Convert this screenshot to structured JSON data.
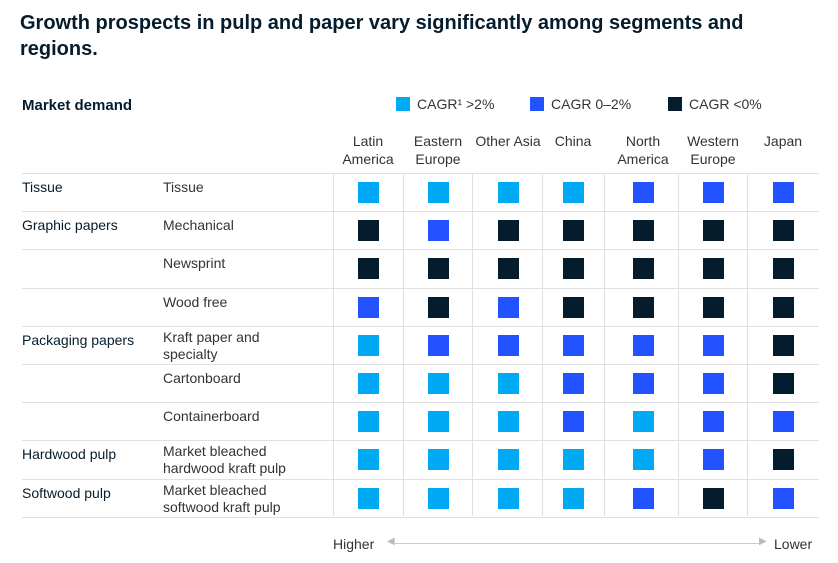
{
  "title": "Growth prospects in pulp and paper vary significantly among segments and regions.",
  "chart_data": {
    "type": "table",
    "title": "Growth prospects in pulp and paper vary significantly among segments and regions.",
    "row_header": "Market demand",
    "legend": [
      {
        "key": "L",
        "label": "CAGR¹ >2%",
        "color": "#00a9f4"
      },
      {
        "key": "M",
        "label": "CAGR 0–2%",
        "color": "#2251ff"
      },
      {
        "key": "D",
        "label": "CAGR <0%",
        "color": "#051c2c"
      }
    ],
    "columns": [
      "Latin America",
      "Eastern Europe",
      "Other Asia",
      "China",
      "North America",
      "Western Europe",
      "Japan"
    ],
    "rows": [
      {
        "segment": "Tissue",
        "product": "Tissue",
        "values": [
          "L",
          "L",
          "L",
          "L",
          "M",
          "M",
          "M"
        ]
      },
      {
        "segment": "Graphic papers",
        "product": "Mechanical",
        "values": [
          "D",
          "M",
          "D",
          "D",
          "D",
          "D",
          "D"
        ]
      },
      {
        "segment": "",
        "product": "Newsprint",
        "values": [
          "D",
          "D",
          "D",
          "D",
          "D",
          "D",
          "D"
        ]
      },
      {
        "segment": "",
        "product": "Wood free",
        "values": [
          "M",
          "D",
          "M",
          "D",
          "D",
          "D",
          "D"
        ]
      },
      {
        "segment": "Packaging papers",
        "product": "Kraft paper and specialty",
        "values": [
          "L",
          "M",
          "M",
          "M",
          "M",
          "M",
          "D"
        ]
      },
      {
        "segment": "",
        "product": "Cartonboard",
        "values": [
          "L",
          "L",
          "L",
          "M",
          "M",
          "M",
          "D"
        ]
      },
      {
        "segment": "",
        "product": "Containerboard",
        "values": [
          "L",
          "L",
          "L",
          "M",
          "L",
          "M",
          "M"
        ]
      },
      {
        "segment": "Hardwood pulp",
        "product": "Market bleached hardwood kraft pulp",
        "values": [
          "L",
          "L",
          "L",
          "L",
          "L",
          "M",
          "D"
        ]
      },
      {
        "segment": "Softwood pulp",
        "product": "Market bleached softwood kraft pulp",
        "values": [
          "L",
          "L",
          "L",
          "L",
          "M",
          "D",
          "M"
        ]
      }
    ],
    "axis": {
      "left": "Higher",
      "right": "Lower"
    }
  }
}
